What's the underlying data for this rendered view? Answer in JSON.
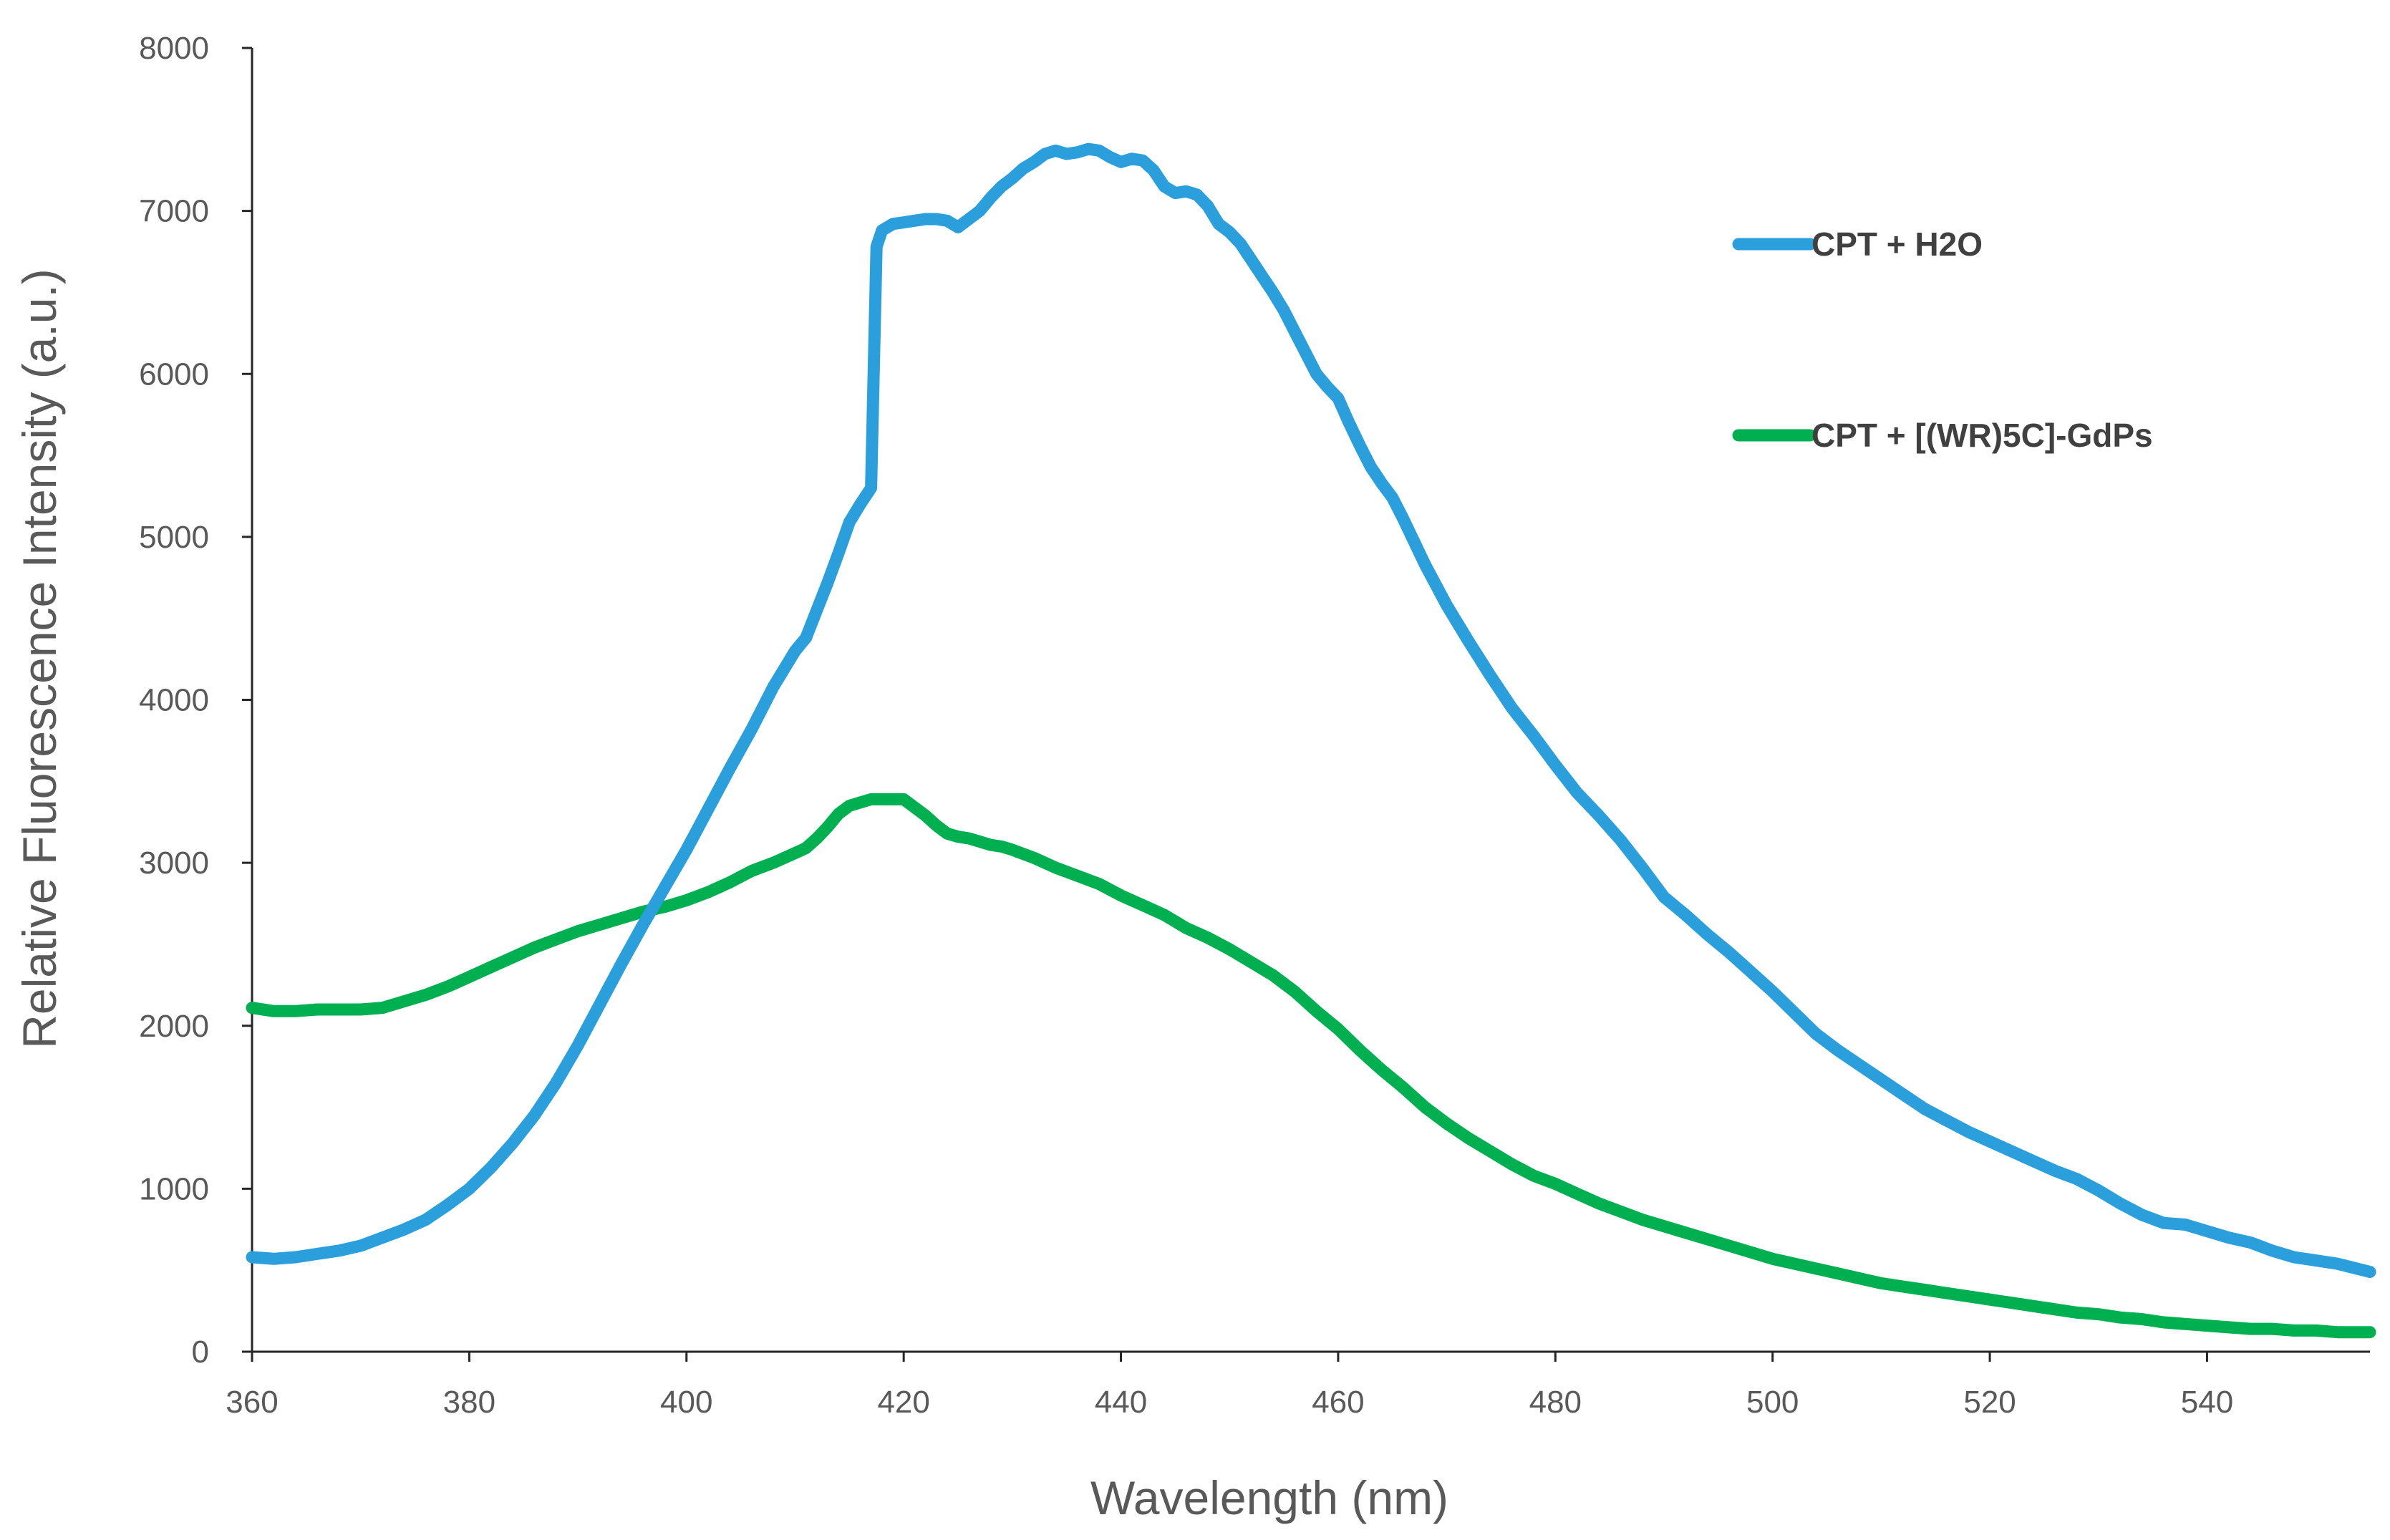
{
  "chart_data": {
    "type": "line",
    "title": "",
    "xlabel": "Wavelength (nm)",
    "ylabel": "Relative Fluorescence Intensity (a.u.)",
    "xlim": [
      360,
      555
    ],
    "ylim": [
      0,
      8000
    ],
    "x_ticks": [
      360,
      380,
      400,
      420,
      440,
      460,
      480,
      500,
      520,
      540
    ],
    "y_ticks": [
      0,
      1000,
      2000,
      3000,
      4000,
      5000,
      6000,
      7000,
      8000
    ],
    "grid": false,
    "legend_position": "right",
    "series": [
      {
        "name": "CPT + H2O",
        "color": "#2A9FDC",
        "points": [
          [
            360,
            580
          ],
          [
            362,
            570
          ],
          [
            364,
            580
          ],
          [
            366,
            600
          ],
          [
            368,
            620
          ],
          [
            370,
            650
          ],
          [
            372,
            700
          ],
          [
            374,
            750
          ],
          [
            376,
            810
          ],
          [
            378,
            900
          ],
          [
            380,
            1000
          ],
          [
            382,
            1130
          ],
          [
            384,
            1280
          ],
          [
            386,
            1450
          ],
          [
            388,
            1650
          ],
          [
            390,
            1880
          ],
          [
            392,
            2130
          ],
          [
            394,
            2380
          ],
          [
            396,
            2620
          ],
          [
            398,
            2850
          ],
          [
            400,
            3080
          ],
          [
            402,
            3330
          ],
          [
            404,
            3580
          ],
          [
            406,
            3820
          ],
          [
            408,
            4080
          ],
          [
            410,
            4300
          ],
          [
            411,
            4380
          ],
          [
            412,
            4550
          ],
          [
            413,
            4720
          ],
          [
            414,
            4900
          ],
          [
            415,
            5090
          ],
          [
            416,
            5200
          ],
          [
            417,
            5300
          ],
          [
            417.5,
            6780
          ],
          [
            418,
            6880
          ],
          [
            419,
            6920
          ],
          [
            420,
            6930
          ],
          [
            421,
            6940
          ],
          [
            422,
            6950
          ],
          [
            423,
            6950
          ],
          [
            424,
            6940
          ],
          [
            425,
            6900
          ],
          [
            426,
            6950
          ],
          [
            427,
            7000
          ],
          [
            428,
            7080
          ],
          [
            429,
            7150
          ],
          [
            430,
            7200
          ],
          [
            431,
            7260
          ],
          [
            432,
            7300
          ],
          [
            433,
            7350
          ],
          [
            434,
            7370
          ],
          [
            435,
            7350
          ],
          [
            436,
            7360
          ],
          [
            437,
            7380
          ],
          [
            438,
            7370
          ],
          [
            439,
            7330
          ],
          [
            440,
            7300
          ],
          [
            441,
            7320
          ],
          [
            442,
            7310
          ],
          [
            443,
            7250
          ],
          [
            444,
            7150
          ],
          [
            445,
            7110
          ],
          [
            446,
            7120
          ],
          [
            447,
            7100
          ],
          [
            448,
            7030
          ],
          [
            449,
            6920
          ],
          [
            450,
            6870
          ],
          [
            451,
            6800
          ],
          [
            452,
            6700
          ],
          [
            453,
            6600
          ],
          [
            454,
            6500
          ],
          [
            455,
            6390
          ],
          [
            456,
            6260
          ],
          [
            457,
            6130
          ],
          [
            458,
            6000
          ],
          [
            459,
            5920
          ],
          [
            460,
            5850
          ],
          [
            461,
            5700
          ],
          [
            462,
            5560
          ],
          [
            463,
            5430
          ],
          [
            464,
            5330
          ],
          [
            465,
            5240
          ],
          [
            466,
            5110
          ],
          [
            468,
            4830
          ],
          [
            470,
            4580
          ],
          [
            472,
            4360
          ],
          [
            474,
            4150
          ],
          [
            476,
            3950
          ],
          [
            478,
            3780
          ],
          [
            480,
            3600
          ],
          [
            482,
            3430
          ],
          [
            484,
            3290
          ],
          [
            486,
            3140
          ],
          [
            488,
            2970
          ],
          [
            490,
            2790
          ],
          [
            492,
            2680
          ],
          [
            494,
            2560
          ],
          [
            496,
            2450
          ],
          [
            498,
            2330
          ],
          [
            500,
            2210
          ],
          [
            502,
            2080
          ],
          [
            504,
            1950
          ],
          [
            506,
            1850
          ],
          [
            508,
            1760
          ],
          [
            510,
            1670
          ],
          [
            512,
            1580
          ],
          [
            514,
            1490
          ],
          [
            516,
            1420
          ],
          [
            518,
            1350
          ],
          [
            520,
            1290
          ],
          [
            522,
            1230
          ],
          [
            524,
            1170
          ],
          [
            526,
            1110
          ],
          [
            528,
            1060
          ],
          [
            530,
            990
          ],
          [
            532,
            910
          ],
          [
            534,
            840
          ],
          [
            536,
            790
          ],
          [
            538,
            780
          ],
          [
            540,
            740
          ],
          [
            542,
            700
          ],
          [
            544,
            670
          ],
          [
            546,
            620
          ],
          [
            548,
            580
          ],
          [
            550,
            560
          ],
          [
            552,
            540
          ],
          [
            555,
            490
          ]
        ]
      },
      {
        "name": "CPT + [(WR)5C]-GdPs",
        "color": "#00B050",
        "points": [
          [
            360,
            2110
          ],
          [
            362,
            2090
          ],
          [
            364,
            2090
          ],
          [
            366,
            2100
          ],
          [
            368,
            2100
          ],
          [
            370,
            2100
          ],
          [
            372,
            2110
          ],
          [
            374,
            2150
          ],
          [
            376,
            2190
          ],
          [
            378,
            2240
          ],
          [
            380,
            2300
          ],
          [
            382,
            2360
          ],
          [
            384,
            2420
          ],
          [
            386,
            2480
          ],
          [
            388,
            2530
          ],
          [
            390,
            2580
          ],
          [
            392,
            2620
          ],
          [
            394,
            2660
          ],
          [
            396,
            2700
          ],
          [
            398,
            2730
          ],
          [
            400,
            2770
          ],
          [
            402,
            2820
          ],
          [
            404,
            2880
          ],
          [
            406,
            2950
          ],
          [
            408,
            3000
          ],
          [
            410,
            3060
          ],
          [
            411,
            3090
          ],
          [
            412,
            3150
          ],
          [
            413,
            3220
          ],
          [
            414,
            3300
          ],
          [
            415,
            3350
          ],
          [
            416,
            3370
          ],
          [
            417,
            3390
          ],
          [
            418,
            3390
          ],
          [
            419,
            3390
          ],
          [
            420,
            3390
          ],
          [
            421,
            3340
          ],
          [
            422,
            3290
          ],
          [
            423,
            3230
          ],
          [
            424,
            3180
          ],
          [
            425,
            3160
          ],
          [
            426,
            3150
          ],
          [
            427,
            3130
          ],
          [
            428,
            3110
          ],
          [
            429,
            3100
          ],
          [
            430,
            3080
          ],
          [
            432,
            3030
          ],
          [
            434,
            2970
          ],
          [
            436,
            2920
          ],
          [
            438,
            2870
          ],
          [
            440,
            2800
          ],
          [
            442,
            2740
          ],
          [
            444,
            2680
          ],
          [
            446,
            2600
          ],
          [
            448,
            2540
          ],
          [
            450,
            2470
          ],
          [
            452,
            2390
          ],
          [
            454,
            2310
          ],
          [
            456,
            2210
          ],
          [
            458,
            2090
          ],
          [
            460,
            1980
          ],
          [
            462,
            1850
          ],
          [
            464,
            1730
          ],
          [
            466,
            1620
          ],
          [
            468,
            1500
          ],
          [
            470,
            1400
          ],
          [
            472,
            1310
          ],
          [
            474,
            1230
          ],
          [
            476,
            1150
          ],
          [
            478,
            1080
          ],
          [
            480,
            1030
          ],
          [
            482,
            970
          ],
          [
            484,
            910
          ],
          [
            486,
            860
          ],
          [
            488,
            810
          ],
          [
            490,
            770
          ],
          [
            492,
            730
          ],
          [
            494,
            690
          ],
          [
            496,
            650
          ],
          [
            498,
            610
          ],
          [
            500,
            570
          ],
          [
            502,
            540
          ],
          [
            504,
            510
          ],
          [
            506,
            480
          ],
          [
            508,
            450
          ],
          [
            510,
            420
          ],
          [
            512,
            400
          ],
          [
            514,
            380
          ],
          [
            516,
            360
          ],
          [
            518,
            340
          ],
          [
            520,
            320
          ],
          [
            522,
            300
          ],
          [
            524,
            280
          ],
          [
            526,
            260
          ],
          [
            528,
            240
          ],
          [
            530,
            230
          ],
          [
            532,
            210
          ],
          [
            534,
            200
          ],
          [
            536,
            180
          ],
          [
            538,
            170
          ],
          [
            540,
            160
          ],
          [
            542,
            150
          ],
          [
            544,
            140
          ],
          [
            546,
            140
          ],
          [
            548,
            130
          ],
          [
            550,
            130
          ],
          [
            552,
            120
          ],
          [
            555,
            120
          ]
        ]
      }
    ]
  }
}
